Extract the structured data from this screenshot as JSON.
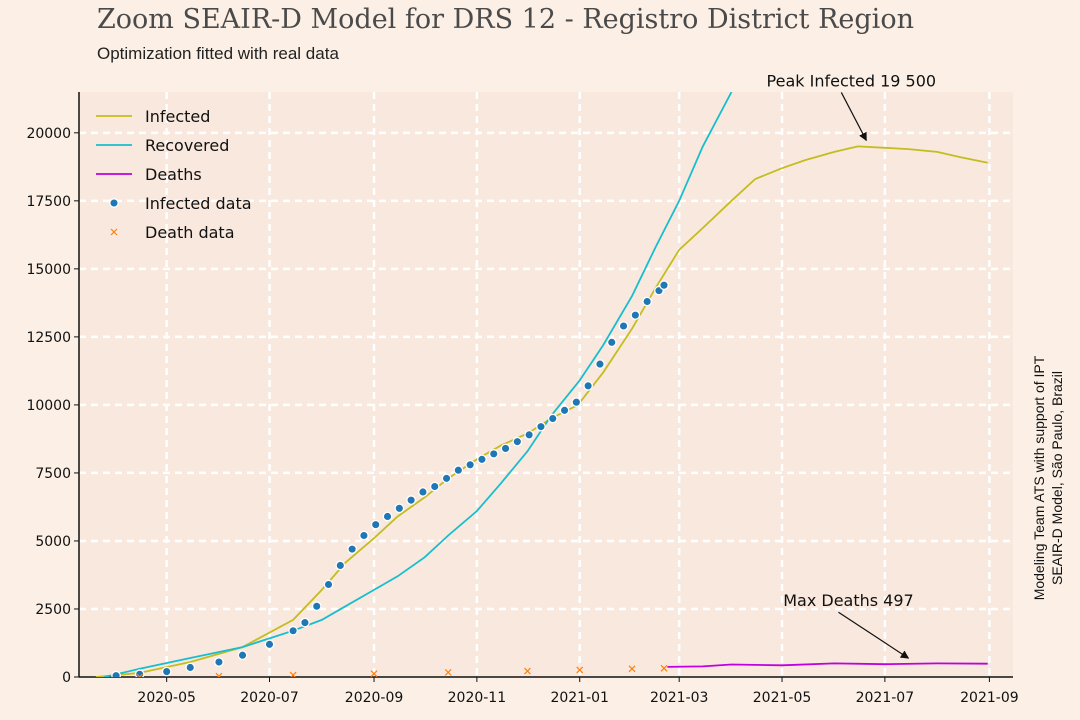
{
  "chart_data": {
    "type": "line",
    "title": "Zoom SEAIR-D Model for DRS 12 - Registro District Region",
    "subtitle": "Optimization fitted with real data",
    "credit_line1": "Modeling Team ATS with support of IPT",
    "credit_line2": "SEAIR-D Model, São Paulo, Brazil",
    "xlabel": "",
    "ylabel": "",
    "xlim": [
      "2020-03-10",
      "2021-09-15"
    ],
    "ylim": [
      0,
      21500
    ],
    "x_ticks": [
      "2020-05",
      "2020-07",
      "2020-09",
      "2020-11",
      "2021-01",
      "2021-03",
      "2021-05",
      "2021-07",
      "2021-09"
    ],
    "y_ticks": [
      0,
      2500,
      5000,
      7500,
      10000,
      12500,
      15000,
      17500,
      20000
    ],
    "grid": true,
    "legend_position": "top-left",
    "series": [
      {
        "name": "Infected",
        "kind": "line",
        "color": "#c4bd1e",
        "points": [
          [
            "2020-03-20",
            0
          ],
          [
            "2020-04-15",
            150
          ],
          [
            "2020-05-15",
            550
          ],
          [
            "2020-06-15",
            1100
          ],
          [
            "2020-07-15",
            2100
          ],
          [
            "2020-08-01",
            3200
          ],
          [
            "2020-08-15",
            4200
          ],
          [
            "2020-09-01",
            5100
          ],
          [
            "2020-09-15",
            5900
          ],
          [
            "2020-10-01",
            6600
          ],
          [
            "2020-10-15",
            7300
          ],
          [
            "2020-11-01",
            8000
          ],
          [
            "2020-11-15",
            8500
          ],
          [
            "2020-12-01",
            8950
          ],
          [
            "2020-12-15",
            9500
          ],
          [
            "2020-12-31",
            10000
          ],
          [
            "2021-01-15",
            11200
          ],
          [
            "2021-02-01",
            12800
          ],
          [
            "2021-02-15",
            14300
          ],
          [
            "2021-03-01",
            15700
          ],
          [
            "2021-03-15",
            16500
          ],
          [
            "2021-04-01",
            17500
          ],
          [
            "2021-04-15",
            18300
          ],
          [
            "2021-05-01",
            18700
          ],
          [
            "2021-05-15",
            19000
          ],
          [
            "2021-06-01",
            19300
          ],
          [
            "2021-06-15",
            19500
          ],
          [
            "2021-07-01",
            19450
          ],
          [
            "2021-07-15",
            19400
          ],
          [
            "2021-08-01",
            19300
          ],
          [
            "2021-08-15",
            19100
          ],
          [
            "2021-08-31",
            18900
          ]
        ]
      },
      {
        "name": "Recovered",
        "kind": "line",
        "color": "#17becf",
        "points": [
          [
            "2020-03-25",
            0
          ],
          [
            "2020-04-15",
            300
          ],
          [
            "2020-05-15",
            700
          ],
          [
            "2020-06-15",
            1100
          ],
          [
            "2020-07-15",
            1700
          ],
          [
            "2020-08-01",
            2100
          ],
          [
            "2020-08-15",
            2600
          ],
          [
            "2020-09-01",
            3200
          ],
          [
            "2020-09-15",
            3700
          ],
          [
            "2020-10-01",
            4400
          ],
          [
            "2020-10-15",
            5200
          ],
          [
            "2020-11-01",
            6100
          ],
          [
            "2020-11-15",
            7100
          ],
          [
            "2020-12-01",
            8300
          ],
          [
            "2020-12-15",
            9600
          ],
          [
            "2021-01-01",
            10900
          ],
          [
            "2021-01-15",
            12200
          ],
          [
            "2021-02-01",
            14000
          ],
          [
            "2021-02-15",
            15800
          ],
          [
            "2021-03-01",
            17500
          ],
          [
            "2021-03-15",
            19500
          ],
          [
            "2021-04-01",
            21500
          ]
        ]
      },
      {
        "name": "Deaths",
        "kind": "line",
        "color": "#bf00e0",
        "points": [
          [
            "2021-02-22",
            370
          ],
          [
            "2021-03-15",
            390
          ],
          [
            "2021-04-01",
            460
          ],
          [
            "2021-05-01",
            430
          ],
          [
            "2021-06-01",
            500
          ],
          [
            "2021-07-01",
            470
          ],
          [
            "2021-08-01",
            500
          ],
          [
            "2021-08-31",
            490
          ]
        ]
      },
      {
        "name": "Infected data",
        "kind": "scatter",
        "color": "#1f77b4",
        "points": [
          [
            "2020-04-01",
            50
          ],
          [
            "2020-04-15",
            100
          ],
          [
            "2020-05-01",
            200
          ],
          [
            "2020-05-15",
            350
          ],
          [
            "2020-06-01",
            550
          ],
          [
            "2020-06-15",
            800
          ],
          [
            "2020-07-01",
            1200
          ],
          [
            "2020-07-15",
            1700
          ],
          [
            "2020-07-22",
            2000
          ],
          [
            "2020-07-29",
            2600
          ],
          [
            "2020-08-05",
            3400
          ],
          [
            "2020-08-12",
            4100
          ],
          [
            "2020-08-19",
            4700
          ],
          [
            "2020-08-26",
            5200
          ],
          [
            "2020-09-02",
            5600
          ],
          [
            "2020-09-09",
            5900
          ],
          [
            "2020-09-16",
            6200
          ],
          [
            "2020-09-23",
            6500
          ],
          [
            "2020-09-30",
            6800
          ],
          [
            "2020-10-07",
            7000
          ],
          [
            "2020-10-14",
            7300
          ],
          [
            "2020-10-21",
            7600
          ],
          [
            "2020-10-28",
            7800
          ],
          [
            "2020-11-04",
            8000
          ],
          [
            "2020-11-11",
            8200
          ],
          [
            "2020-11-18",
            8400
          ],
          [
            "2020-11-25",
            8650
          ],
          [
            "2020-12-02",
            8900
          ],
          [
            "2020-12-09",
            9200
          ],
          [
            "2020-12-16",
            9500
          ],
          [
            "2020-12-23",
            9800
          ],
          [
            "2020-12-30",
            10100
          ],
          [
            "2021-01-06",
            10700
          ],
          [
            "2021-01-13",
            11500
          ],
          [
            "2021-01-20",
            12300
          ],
          [
            "2021-01-27",
            12900
          ],
          [
            "2021-02-03",
            13300
          ],
          [
            "2021-02-10",
            13800
          ],
          [
            "2021-02-17",
            14200
          ],
          [
            "2021-02-20",
            14400
          ]
        ]
      },
      {
        "name": "Death data",
        "kind": "scatter_x",
        "color": "#ff7f0e",
        "points": [
          [
            "2020-04-15",
            5
          ],
          [
            "2020-06-01",
            30
          ],
          [
            "2020-07-15",
            70
          ],
          [
            "2020-09-01",
            120
          ],
          [
            "2020-10-15",
            170
          ],
          [
            "2020-12-01",
            220
          ],
          [
            "2021-01-01",
            260
          ],
          [
            "2021-02-01",
            300
          ],
          [
            "2021-02-20",
            320
          ]
        ]
      }
    ],
    "annotations": [
      {
        "text": "Peak Infected 19 500",
        "x": "2021-06-20",
        "y": 19500
      },
      {
        "text": "Max Deaths 497",
        "x": "2021-07-15",
        "y": 470
      }
    ]
  }
}
